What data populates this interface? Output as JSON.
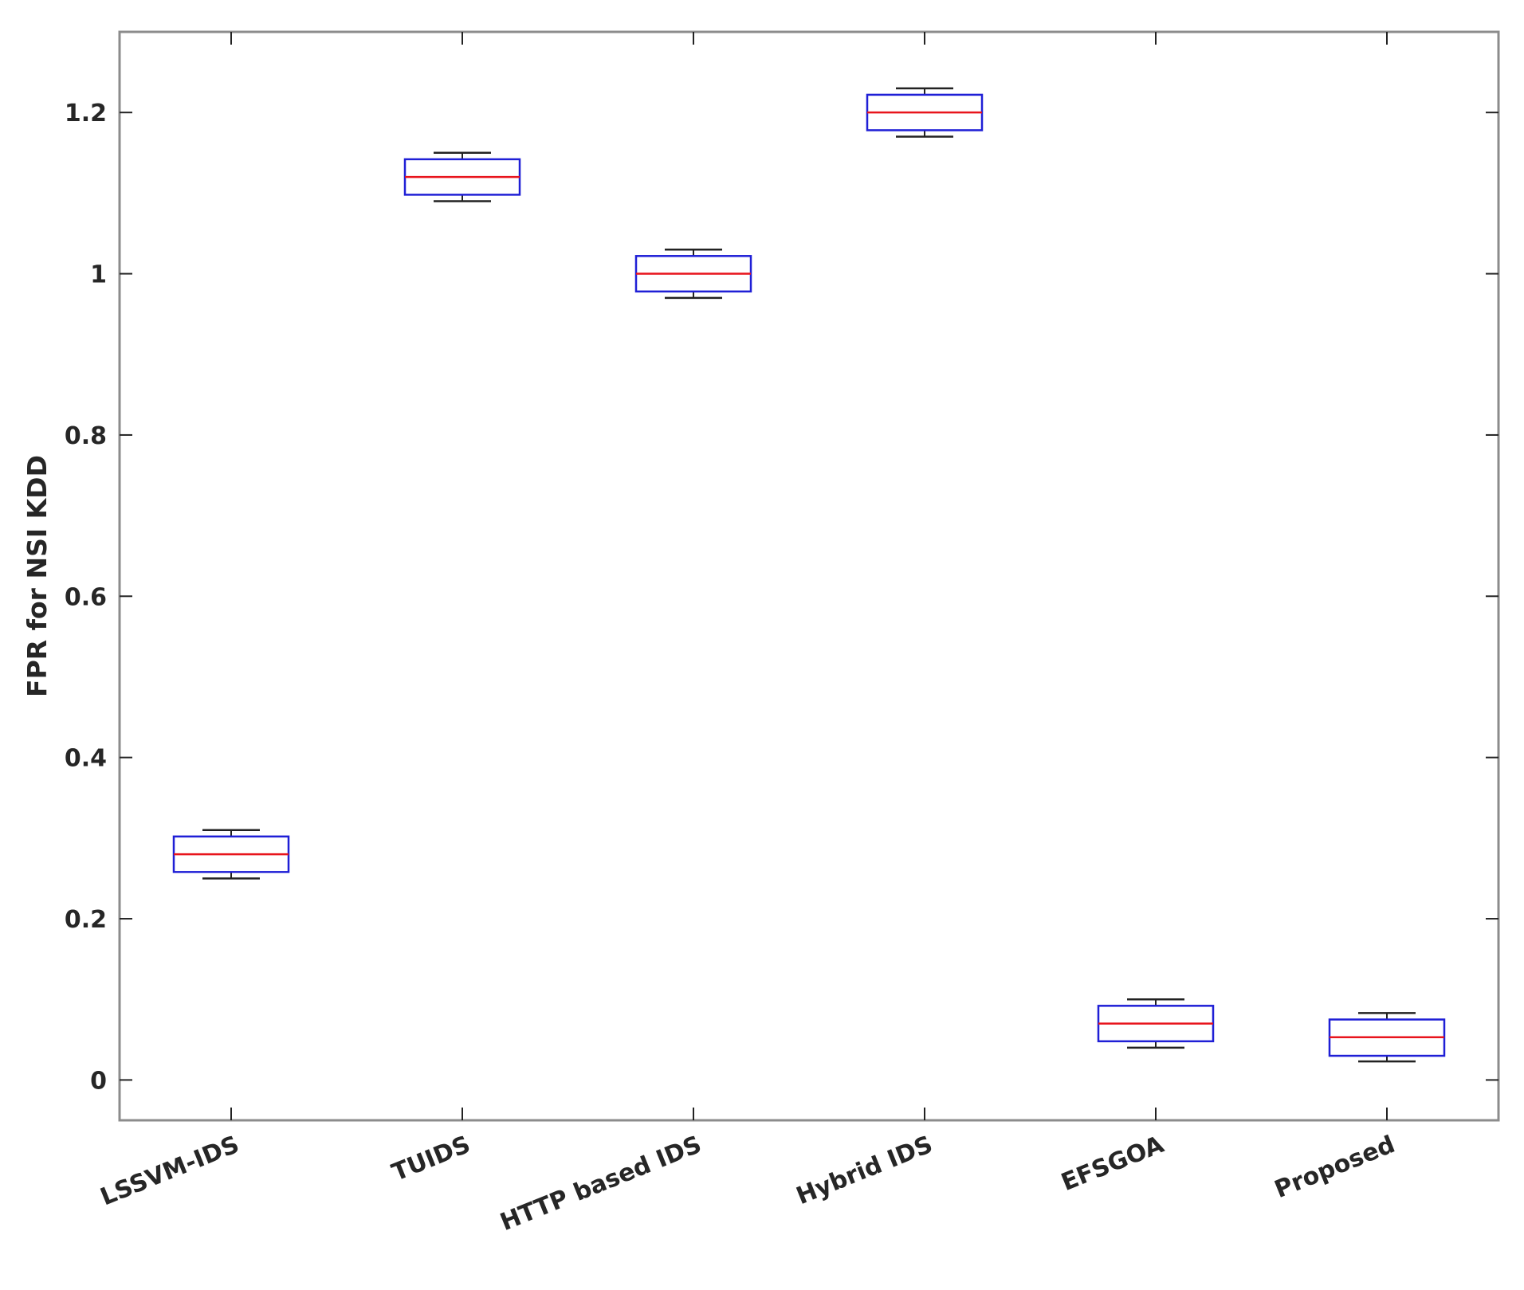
{
  "chart_data": {
    "type": "box",
    "title": "",
    "xlabel": "",
    "ylabel": "FPR for NSI KDD",
    "ylim": [
      -0.05,
      1.3
    ],
    "yticks": [
      0,
      0.2,
      0.4,
      0.6,
      0.8,
      1,
      1.2
    ],
    "ytick_labels": [
      "0",
      "0.2",
      "0.4",
      "0.6",
      "0.8",
      "1",
      "1.2"
    ],
    "categories": [
      "LSSVM-IDS",
      "TUIDS",
      "HTTP based IDS",
      "Hybrid IDS",
      "EFSGOA",
      "Proposed"
    ],
    "boxes": [
      {
        "min": 0.25,
        "q1": 0.258,
        "median": 0.28,
        "q3": 0.302,
        "max": 0.31
      },
      {
        "min": 1.09,
        "q1": 1.098,
        "median": 1.12,
        "q3": 1.142,
        "max": 1.15
      },
      {
        "min": 0.97,
        "q1": 0.978,
        "median": 1.0,
        "q3": 1.022,
        "max": 1.03
      },
      {
        "min": 1.17,
        "q1": 1.178,
        "median": 1.2,
        "q3": 1.222,
        "max": 1.23
      },
      {
        "min": 0.04,
        "q1": 0.048,
        "median": 0.07,
        "q3": 0.092,
        "max": 0.1
      },
      {
        "min": 0.023,
        "q1": 0.03,
        "median": 0.053,
        "q3": 0.075,
        "max": 0.083
      }
    ],
    "grid": false,
    "colors": {
      "box": "#1f1fd6",
      "median": "#e8141c",
      "whisker": "#222222",
      "axis": "#8c8c8c"
    }
  }
}
